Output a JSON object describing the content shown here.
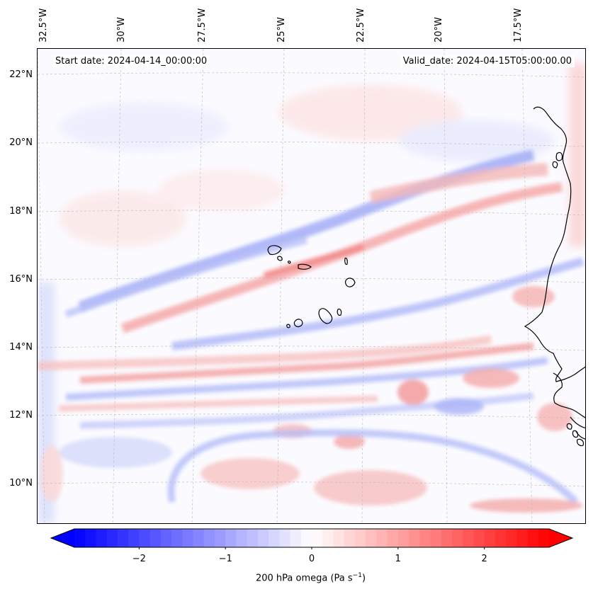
{
  "header": {
    "start_date": "Start date: 2024-04-14_00:00:00",
    "valid_date": "Valid_date: 2024-04-15T05:00:00.00"
  },
  "map": {
    "longitude_labels": [
      "32.5°W",
      "30°W",
      "27.5°W",
      "25°W",
      "22.5°W",
      "20°W",
      "17.5°W"
    ],
    "latitude_labels": [
      "22°N",
      "20°N",
      "18°N",
      "16°N",
      "14°N",
      "12°N",
      "10°N"
    ],
    "coastline_color": "#000000",
    "gridline_color": "#b8b8b8"
  },
  "colorbar": {
    "label_prefix": "200 hPa omega (Pa s",
    "label_exponent": "−1",
    "label_suffix": ")",
    "tick_labels": [
      "−2",
      "−1",
      "0",
      "1",
      "2"
    ],
    "min_value": -2.75,
    "max_value": 2.75,
    "low_color": "#0000ff",
    "mid_color": "#ffffff",
    "high_color": "#ff0000"
  }
}
